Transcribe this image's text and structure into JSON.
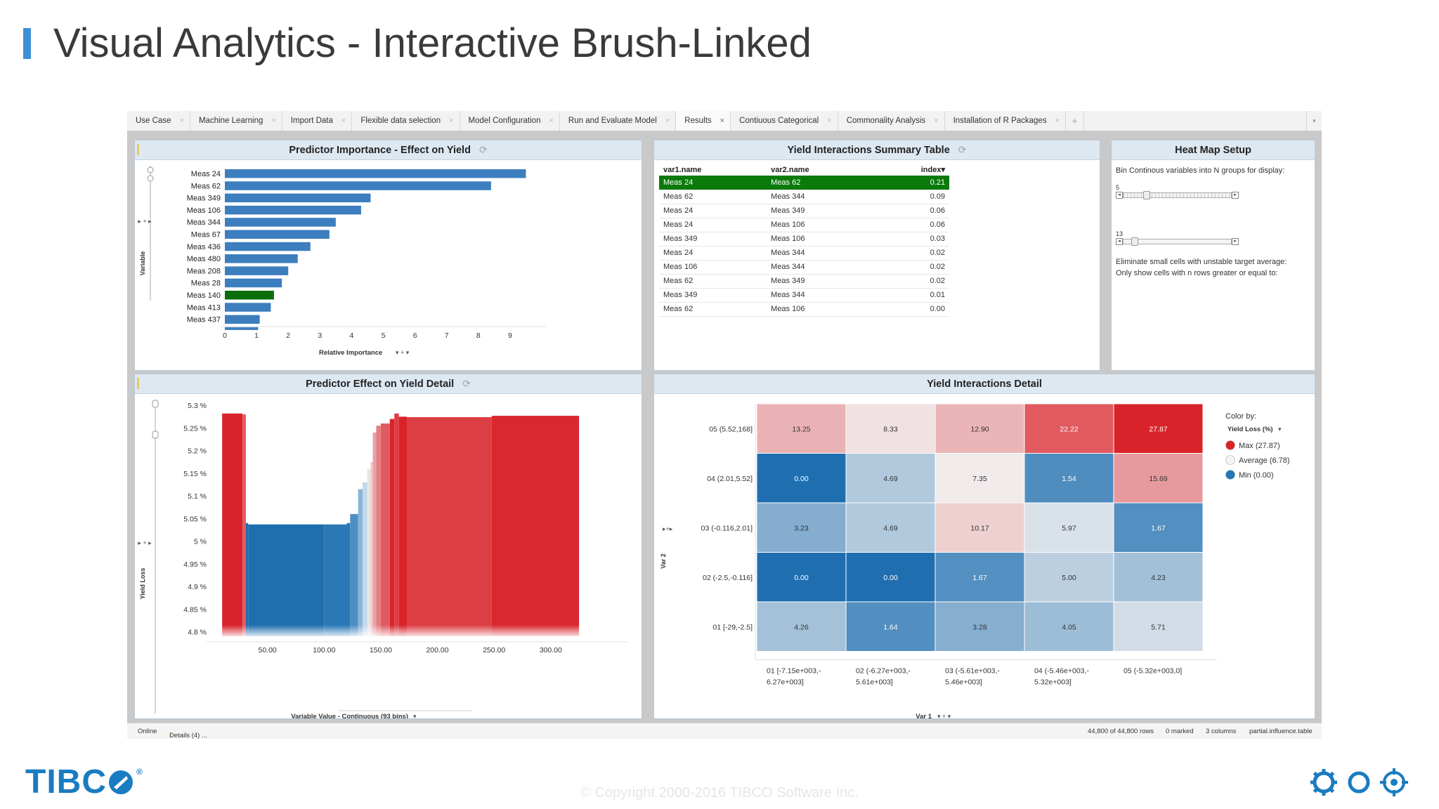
{
  "slide": {
    "title": "Visual Analytics - Interactive Brush-Linked",
    "copyright": "© Copyright 2000-2016 TIBCO Software Inc.",
    "logo_text": "TIBC",
    "logo_reg": "®"
  },
  "tabs": [
    {
      "label": "Use Case",
      "active": false
    },
    {
      "label": "Machine Learning",
      "active": false
    },
    {
      "label": "Import Data",
      "active": false
    },
    {
      "label": "Flexible data selection",
      "active": false
    },
    {
      "label": "Model Configuration",
      "active": false
    },
    {
      "label": "Run and Evaluate Model",
      "active": false
    },
    {
      "label": "Results",
      "active": true
    },
    {
      "label": "Contiuous Categorical",
      "active": false
    },
    {
      "label": "Commonality Analysis",
      "active": false
    },
    {
      "label": "Installation of R Packages",
      "active": false
    }
  ],
  "tab_close_glyph": "×",
  "tab_add_glyph": "+",
  "tab_menu_glyph": "▾",
  "panels": {
    "predictor_importance": {
      "title": "Predictor Importance - Effect on Yield",
      "refresh": "⟳"
    },
    "summary_table": {
      "title": "Yield Interactions Summary Table",
      "refresh": "⟳"
    },
    "heatmap_setup": {
      "title": "Heat Map Setup"
    },
    "effect_detail": {
      "title": "Predictor Effect on Yield Detail",
      "refresh": "⟳"
    },
    "interactions_detail": {
      "title": "Yield Interactions Detail"
    }
  },
  "summary_table": {
    "columns": [
      "var1.name",
      "var2.name",
      "index"
    ],
    "sort_glyph": "▾",
    "rows": [
      [
        "Meas 24",
        "Meas 62",
        "0.21"
      ],
      [
        "Meas 62",
        "Meas 344",
        "0.09"
      ],
      [
        "Meas 24",
        "Meas 349",
        "0.06"
      ],
      [
        "Meas 24",
        "Meas 106",
        "0.06"
      ],
      [
        "Meas 349",
        "Meas 106",
        "0.03"
      ],
      [
        "Meas 24",
        "Meas 344",
        "0.02"
      ],
      [
        "Meas 106",
        "Meas 344",
        "0.02"
      ],
      [
        "Meas 62",
        "Meas 349",
        "0.02"
      ],
      [
        "Meas 349",
        "Meas 344",
        "0.01"
      ],
      [
        "Meas 62",
        "Meas 106",
        "0.00"
      ]
    ],
    "selected_row": 0
  },
  "heatmap_setup": {
    "bin_label": "Bin Continous variables into N groups for display:",
    "bin_value": "5",
    "bin_fraction": 0.2,
    "min_rows_value": "13",
    "min_rows_fraction": 0.08,
    "eliminate_text": "Eliminate small cells with unstable target average:",
    "only_show_text": "Only show cells with n rows greater or equal to:"
  },
  "status": {
    "online": "Online",
    "details": "Details (4) ...",
    "rows": "44,800 of 44,800 rows",
    "marked": "0 marked",
    "columns": "3 columns",
    "table": "partial.influence.table"
  },
  "colors": {
    "bar_blue": "#3d7ebf",
    "bar_selected": "#0b6e0b",
    "red": "#d9282e",
    "blue": "#1f77b4",
    "accent": "#3d8fd6"
  },
  "chart_data": [
    {
      "type": "bar",
      "orientation": "horizontal",
      "categories": [
        "Meas 24",
        "Meas 62",
        "Meas 349",
        "Meas 106",
        "Meas 344",
        "Meas 67",
        "Meas 436",
        "Meas 480",
        "Meas 208",
        "Meas 28",
        "Meas 140",
        "Meas 413",
        "Meas 437"
      ],
      "values": [
        9.5,
        8.4,
        4.6,
        4.3,
        3.5,
        3.3,
        2.7,
        2.3,
        2.0,
        1.8,
        1.55,
        1.45,
        1.1
      ],
      "extra_partial_value": 1.05,
      "selected_category": "Meas 140",
      "xticks": [
        "0",
        "1",
        "2",
        "3",
        "4",
        "5",
        "6",
        "7",
        "8",
        "9"
      ],
      "xlim": [
        0,
        9.8
      ],
      "xlabel": "Relative Importance",
      "ylabel": "Variable"
    },
    {
      "type": "bar",
      "yticks": [
        "5.3 %",
        "5.25 %",
        "5.2 %",
        "5.15 %",
        "5.1 %",
        "5.05 %",
        "5 %",
        "4.95 %",
        "4.9 %",
        "4.85 %",
        "4.8 %"
      ],
      "ylim": [
        4.79,
        5.305
      ],
      "xticks": [
        "50.00",
        "100.00",
        "150.00",
        "200.00",
        "250.00",
        "300.00"
      ],
      "xlim": [
        0,
        335
      ],
      "xlabel": "Variable Value - Continuous (93 bins)",
      "ylabel": "Yield Loss",
      "bars": [
        {
          "x0": 10,
          "x1": 28,
          "y": 5.282,
          "color": "#d9232a"
        },
        {
          "x0": 28,
          "x1": 31,
          "y": 5.28,
          "color": "#e35a5f"
        },
        {
          "x0": 31,
          "x1": 33,
          "y": 5.04,
          "color": "#1f6fae"
        },
        {
          "x0": 33,
          "x1": 100,
          "y": 5.037,
          "color": "#1f6fae"
        },
        {
          "x0": 100,
          "x1": 120,
          "y": 5.037,
          "color": "#2a79b6"
        },
        {
          "x0": 120,
          "x1": 123,
          "y": 5.04,
          "color": "#2a79b6"
        },
        {
          "x0": 123,
          "x1": 130,
          "y": 5.06,
          "color": "#4d8fc4"
        },
        {
          "x0": 130,
          "x1": 134,
          "y": 5.115,
          "color": "#8ab5d8"
        },
        {
          "x0": 134,
          "x1": 138,
          "y": 5.13,
          "color": "#c2d7ea"
        },
        {
          "x0": 138,
          "x1": 141,
          "y": 5.16,
          "color": "#e7e7e7"
        },
        {
          "x0": 141,
          "x1": 143,
          "y": 5.175,
          "color": "#f3c8cb"
        },
        {
          "x0": 143,
          "x1": 146,
          "y": 5.24,
          "color": "#eca0a4"
        },
        {
          "x0": 146,
          "x1": 150,
          "y": 5.255,
          "color": "#e57f84"
        },
        {
          "x0": 150,
          "x1": 158,
          "y": 5.26,
          "color": "#e05b60"
        },
        {
          "x0": 158,
          "x1": 162,
          "y": 5.27,
          "color": "#d9232a"
        },
        {
          "x0": 162,
          "x1": 166,
          "y": 5.282,
          "color": "#dd3d43"
        },
        {
          "x0": 166,
          "x1": 173,
          "y": 5.275,
          "color": "#d9232a"
        },
        {
          "x0": 173,
          "x1": 248,
          "y": 5.274,
          "color": "#dd3e44"
        },
        {
          "x0": 248,
          "x1": 325,
          "y": 5.277,
          "color": "#d9282e"
        }
      ]
    },
    {
      "type": "heatmap",
      "xlabel": "Var 1",
      "ylabel": "Var 2",
      "x_categories": [
        "01 [-7.15e+003,-6.27e+003]",
        "02 (-6.27e+003,-5.61e+003]",
        "03 (-5.61e+003,-5.46e+003]",
        "04 (-5.46e+003,-5.32e+003]",
        "05 (-5.32e+003,0]"
      ],
      "x_lines": [
        [
          "01 [-7.15e+003,-",
          "6.27e+003]"
        ],
        [
          "02 (-6.27e+003,-",
          "5.61e+003]"
        ],
        [
          "03 (-5.61e+003,-",
          "5.46e+003]"
        ],
        [
          "04 (-5.46e+003,-",
          "5.32e+003]"
        ],
        [
          "05 (-5.32e+003,0]",
          ""
        ]
      ],
      "y_categories": [
        "05 (5.52,168]",
        "04 (2.01,5.52]",
        "03 (-0.116,2.01]",
        "02 (-2.5,-0.116]",
        "01 [-29,-2.5]"
      ],
      "values": [
        [
          13.25,
          8.33,
          12.9,
          22.22,
          27.87
        ],
        [
          0.0,
          4.69,
          7.35,
          1.54,
          15.69
        ],
        [
          3.23,
          4.69,
          10.17,
          5.97,
          1.67
        ],
        [
          0.0,
          0.0,
          1.67,
          5.0,
          4.23
        ],
        [
          4.26,
          1.64,
          3.28,
          4.05,
          5.71
        ]
      ],
      "labels": [
        [
          "13.25",
          "8.33",
          "12.90",
          "22.22",
          "27.87"
        ],
        [
          "0.00",
          "4.69",
          "7.35",
          "1.54",
          "15.69"
        ],
        [
          "3.23",
          "4.69",
          "10.17",
          "5.97",
          "1.67"
        ],
        [
          "0.00",
          "0.00",
          "1.67",
          "5.00",
          "4.23"
        ],
        [
          "4.26",
          "1.64",
          "3.28",
          "4.05",
          "5.71"
        ]
      ],
      "color_min": 0.0,
      "color_avg": 6.78,
      "color_max": 27.87,
      "legend": {
        "color_by_label": "Color by:",
        "color_by_value": "Yield Loss (%)",
        "items": [
          {
            "label": "Max (27.87)",
            "color": "#d9232a"
          },
          {
            "label": "Average (6.78)",
            "color": "#f4f4f4"
          },
          {
            "label": "Min (0.00)",
            "color": "#1f77b4"
          }
        ]
      }
    }
  ]
}
